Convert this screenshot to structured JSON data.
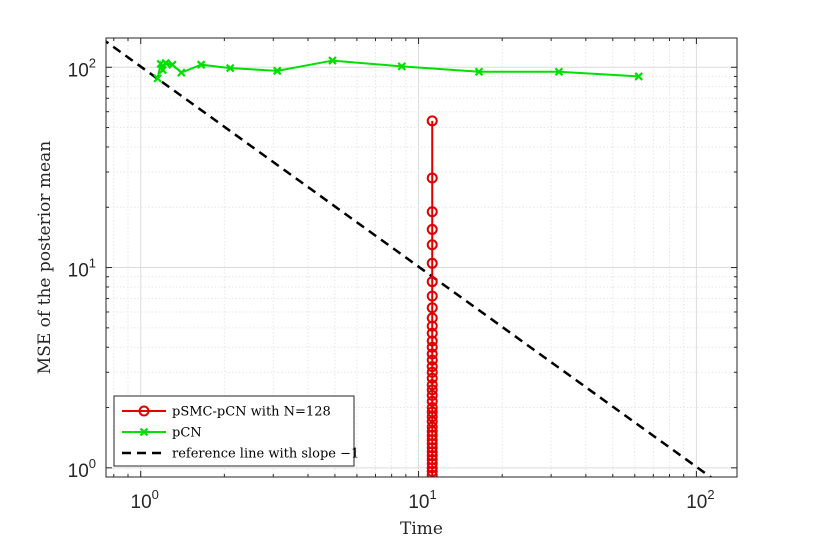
{
  "chart_data": {
    "type": "line",
    "xscale": "log",
    "yscale": "log",
    "xlim": [
      0.75,
      140
    ],
    "ylim": [
      0.9,
      140
    ],
    "grid": true,
    "minor_grid": true,
    "xlabel": "Time",
    "ylabel": "MSE of the posterior mean",
    "xticks": [
      {
        "base": "10",
        "exp": "0",
        "value": 1
      },
      {
        "base": "10",
        "exp": "1",
        "value": 10
      },
      {
        "base": "10",
        "exp": "2",
        "value": 100
      }
    ],
    "yticks": [
      {
        "base": "10",
        "exp": "0",
        "value": 1
      },
      {
        "base": "10",
        "exp": "1",
        "value": 10
      },
      {
        "base": "10",
        "exp": "2",
        "value": 100
      }
    ],
    "legend_position": "bottom-left",
    "series": [
      {
        "name": "pSMC-pCN with N=128",
        "color": "#e00000",
        "marker": "circle",
        "x": [
          11.2,
          11.2,
          11.2,
          11.2,
          11.2,
          11.2,
          11.2,
          11.2,
          11.2,
          11.2,
          11.2,
          11.2,
          11.2,
          11.2,
          11.2,
          11.2,
          11.2,
          11.2,
          11.2,
          11.2,
          11.2,
          11.2,
          11.2,
          11.2,
          11.2,
          11.2,
          11.2,
          11.2,
          11.2,
          11.2,
          11.2,
          11.2,
          11.2,
          11.2,
          11.2,
          11.2,
          11.2,
          11.2,
          11.2,
          11.2
        ],
        "y": [
          54,
          28,
          19,
          15.5,
          13,
          10.5,
          8.5,
          7.2,
          6.3,
          5.6,
          5.1,
          4.7,
          4.3,
          4.0,
          3.7,
          3.45,
          3.2,
          3.0,
          2.8,
          2.6,
          2.45,
          2.3,
          2.15,
          2.0,
          1.9,
          1.8,
          1.7,
          1.6,
          1.52,
          1.45,
          1.38,
          1.32,
          1.26,
          1.2,
          1.15,
          1.1,
          1.05,
          1.0,
          0.96,
          0.92
        ]
      },
      {
        "name": "pCN",
        "color": "#00e000",
        "marker": "x",
        "x": [
          1.15,
          1.18,
          1.2,
          1.23,
          1.3,
          1.4,
          1.65,
          2.1,
          3.1,
          4.9,
          8.7,
          16.5,
          32,
          62
        ],
        "y": [
          88,
          104,
          97,
          105,
          103,
          94,
          103,
          99,
          96,
          108,
          101,
          95,
          95,
          90
        ]
      },
      {
        "name": "reference line with slope −1",
        "color": "#000000",
        "dash": true,
        "x": [
          0.72,
          115
        ],
        "y": [
          140,
          0.88
        ]
      }
    ]
  }
}
